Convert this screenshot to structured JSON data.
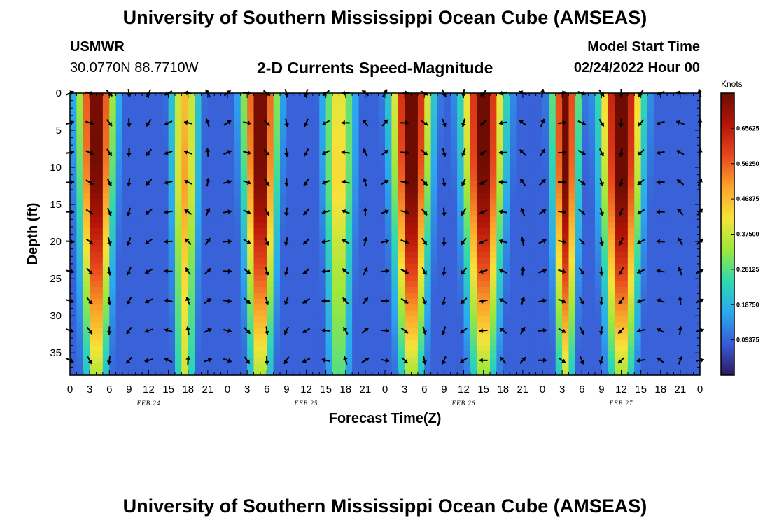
{
  "header": {
    "title": "University of Southern Mississippi Ocean Cube (AMSEAS)",
    "station": "USMWR",
    "coords": "30.0770N  88.7710W",
    "subtitle": "2-D Currents Speed-Magnitude",
    "model_start_label": "Model Start Time",
    "model_start_value": "02/24/2022 Hour 00"
  },
  "footer": {
    "title": "University of Southern Mississippi Ocean Cube (AMSEAS)"
  },
  "colors": {
    "ramp": [
      "#2b1a5e",
      "#3a5bd6",
      "#2aa9ef",
      "#2fd9b0",
      "#9be83c",
      "#f6e33a",
      "#fba42b",
      "#e8481c",
      "#b51507",
      "#6e0c02"
    ]
  },
  "chart_data": {
    "type": "heatmap",
    "title": "2-D Currents Speed-Magnitude",
    "xlabel": "Forecast Time(Z)",
    "ylabel": "Depth (ft)",
    "x_ticks": [
      "0",
      "3",
      "6",
      "9",
      "12",
      "15",
      "18",
      "21",
      "0",
      "3",
      "6",
      "9",
      "12",
      "15",
      "18",
      "21",
      "0",
      "3",
      "6",
      "9",
      "12",
      "15",
      "18",
      "21",
      "0",
      "3",
      "6",
      "9",
      "12",
      "15",
      "18",
      "21",
      "0"
    ],
    "x_range_hours": [
      0,
      96
    ],
    "day_labels": [
      {
        "label": "FEB 24",
        "hour": 12
      },
      {
        "label": "FEB 25",
        "hour": 36
      },
      {
        "label": "FEB 26",
        "hour": 60
      },
      {
        "label": "FEB 27",
        "hour": 84
      }
    ],
    "y_ticks": [
      0,
      5,
      10,
      15,
      20,
      25,
      30,
      35
    ],
    "y_range_ft": [
      0,
      38
    ],
    "colorbar": {
      "unit": "Knots",
      "range": [
        0.0,
        0.75
      ],
      "ticks": [
        "0.65625",
        "0.56250",
        "0.46875",
        "0.37500",
        "0.28125",
        "0.18750",
        "0.09375"
      ],
      "tick_values": [
        0.65625,
        0.5625,
        0.46875,
        0.375,
        0.28125,
        0.1875,
        0.09375
      ]
    },
    "speed_maxima": [
      {
        "hour": 4.0,
        "peak_knots": 0.74,
        "surface_knots": 0.7,
        "width_hours": 2.6,
        "taper": 0.55
      },
      {
        "hour": 17.5,
        "peak_knots": 0.45,
        "surface_knots": 0.4,
        "width_hours": 2.0,
        "taper": 0.2
      },
      {
        "hour": 29.0,
        "peak_knots": 0.74,
        "surface_knots": 0.7,
        "width_hours": 2.5,
        "taper": 0.55
      },
      {
        "hour": 41.0,
        "peak_knots": 0.4,
        "surface_knots": 0.35,
        "width_hours": 2.3,
        "taper": 0.3
      },
      {
        "hour": 52.0,
        "peak_knots": 0.76,
        "surface_knots": 0.74,
        "width_hours": 2.8,
        "taper": 0.6
      },
      {
        "hour": 63.0,
        "peak_knots": 0.74,
        "surface_knots": 0.7,
        "width_hours": 3.0,
        "taper": 0.6
      },
      {
        "hour": 75.5,
        "peak_knots": 0.72,
        "surface_knots": 0.68,
        "width_hours": 1.9,
        "taper": 0.55
      },
      {
        "hour": 84.0,
        "peak_knots": 0.76,
        "surface_knots": 0.74,
        "width_hours": 3.0,
        "taper": 0.6
      }
    ],
    "vectors": {
      "hours": [
        0,
        3,
        6,
        9,
        12,
        15,
        18,
        21,
        24,
        27,
        30,
        33,
        36,
        39,
        42,
        45,
        48,
        51,
        54,
        57,
        60,
        63,
        66,
        69,
        72,
        75,
        78,
        81,
        84,
        87,
        90,
        93,
        96
      ],
      "depths_ft": [
        0,
        4,
        8,
        12,
        16,
        20,
        24,
        28,
        32,
        36
      ],
      "phase_reference_hour": 3.5,
      "period_hours": 24.8
    }
  }
}
